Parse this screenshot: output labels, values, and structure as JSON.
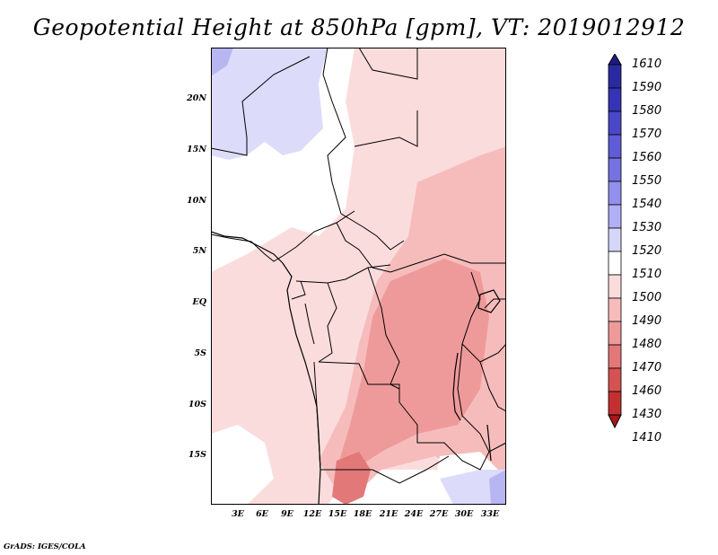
{
  "title": "Geopotential Height at 850hPa [gpm], VT: 2019012912",
  "credit": "GrADS: IGES/COLA",
  "lat_labels": [
    "20N",
    "15N",
    "10N",
    "5N",
    "EQ",
    "5S",
    "10S",
    "15S"
  ],
  "lon_labels": [
    "3E",
    "6E",
    "9E",
    "12E",
    "15E",
    "18E",
    "21E",
    "24E",
    "27E",
    "30E",
    "33E"
  ],
  "colorbar": {
    "levels": [
      "1610",
      "1590",
      "1580",
      "1570",
      "1560",
      "1550",
      "1540",
      "1530",
      "1520",
      "1510",
      "1500",
      "1490",
      "1480",
      "1470",
      "1460",
      "1430",
      "1410"
    ],
    "colors": [
      "#1e1c82",
      "#2a2aa0",
      "#3434b4",
      "#4a48c8",
      "#5e5cd6",
      "#7672e2",
      "#9290ec",
      "#b2b0f4",
      "#d6d6fa",
      "#ffffff",
      "#fbdcdc",
      "#f6bcbc",
      "#ef9a9a",
      "#e27878",
      "#d55252",
      "#c33030",
      "#a81818"
    ]
  },
  "map_colors": {
    "blue_light": "#dcdcfa",
    "blue_mid": "#b8b6f2",
    "white": "#ffffff",
    "pink_light": "#fbdcdc",
    "pink_mid": "#f6bcbc",
    "pink_dark": "#ef9a9a",
    "red": "#e27878"
  }
}
